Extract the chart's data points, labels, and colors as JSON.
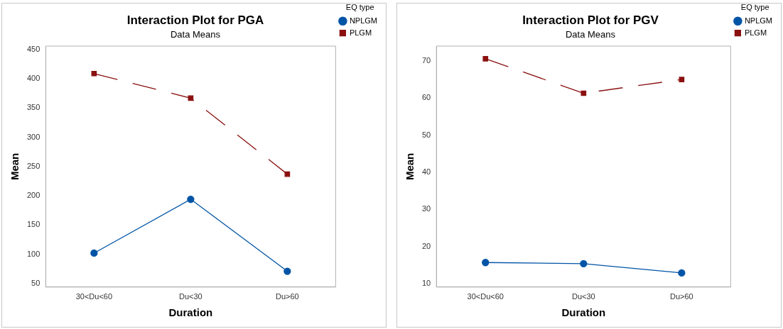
{
  "chart_data": [
    {
      "type": "line",
      "title": "Interaction Plot for PGA",
      "subtitle": "Data Means",
      "xlabel": "Duration",
      "ylabel": "Mean",
      "legend_title": "EQ type",
      "legend": "top right",
      "grid": false,
      "categories": [
        "30<Du<60",
        "Du<30",
        "Du>60"
      ],
      "ylim": [
        44,
        456
      ],
      "yticks": [
        50,
        100,
        150,
        200,
        250,
        300,
        350,
        400,
        450
      ],
      "series": [
        {
          "name": "NPLGM",
          "color": "#0054a6",
          "marker": "circle",
          "line_style": "solid",
          "values": [
            102,
            194,
            71
          ]
        },
        {
          "name": "PLGM",
          "color": "#8b1010",
          "marker": "square",
          "line_style": "dashed",
          "values": [
            409,
            367,
            237
          ]
        }
      ]
    },
    {
      "type": "line",
      "title": "Interaction Plot for PGV",
      "subtitle": "Data Means",
      "xlabel": "Duration",
      "ylabel": "Mean",
      "legend_title": "EQ type",
      "legend": "top right",
      "grid": false,
      "categories": [
        "30<Du<60",
        "Du<30",
        "Du>60"
      ],
      "ylim": [
        9.1,
        74
      ],
      "yticks": [
        10,
        20,
        30,
        40,
        50,
        60,
        70
      ],
      "series": [
        {
          "name": "NPLGM",
          "color": "#0054a6",
          "marker": "circle",
          "line_style": "solid",
          "values": [
            15.7,
            15.4,
            12.9
          ]
        },
        {
          "name": "PLGM",
          "color": "#8b1010",
          "marker": "square",
          "line_style": "dashed",
          "values": [
            70.6,
            61.3,
            65.0
          ]
        }
      ]
    }
  ]
}
